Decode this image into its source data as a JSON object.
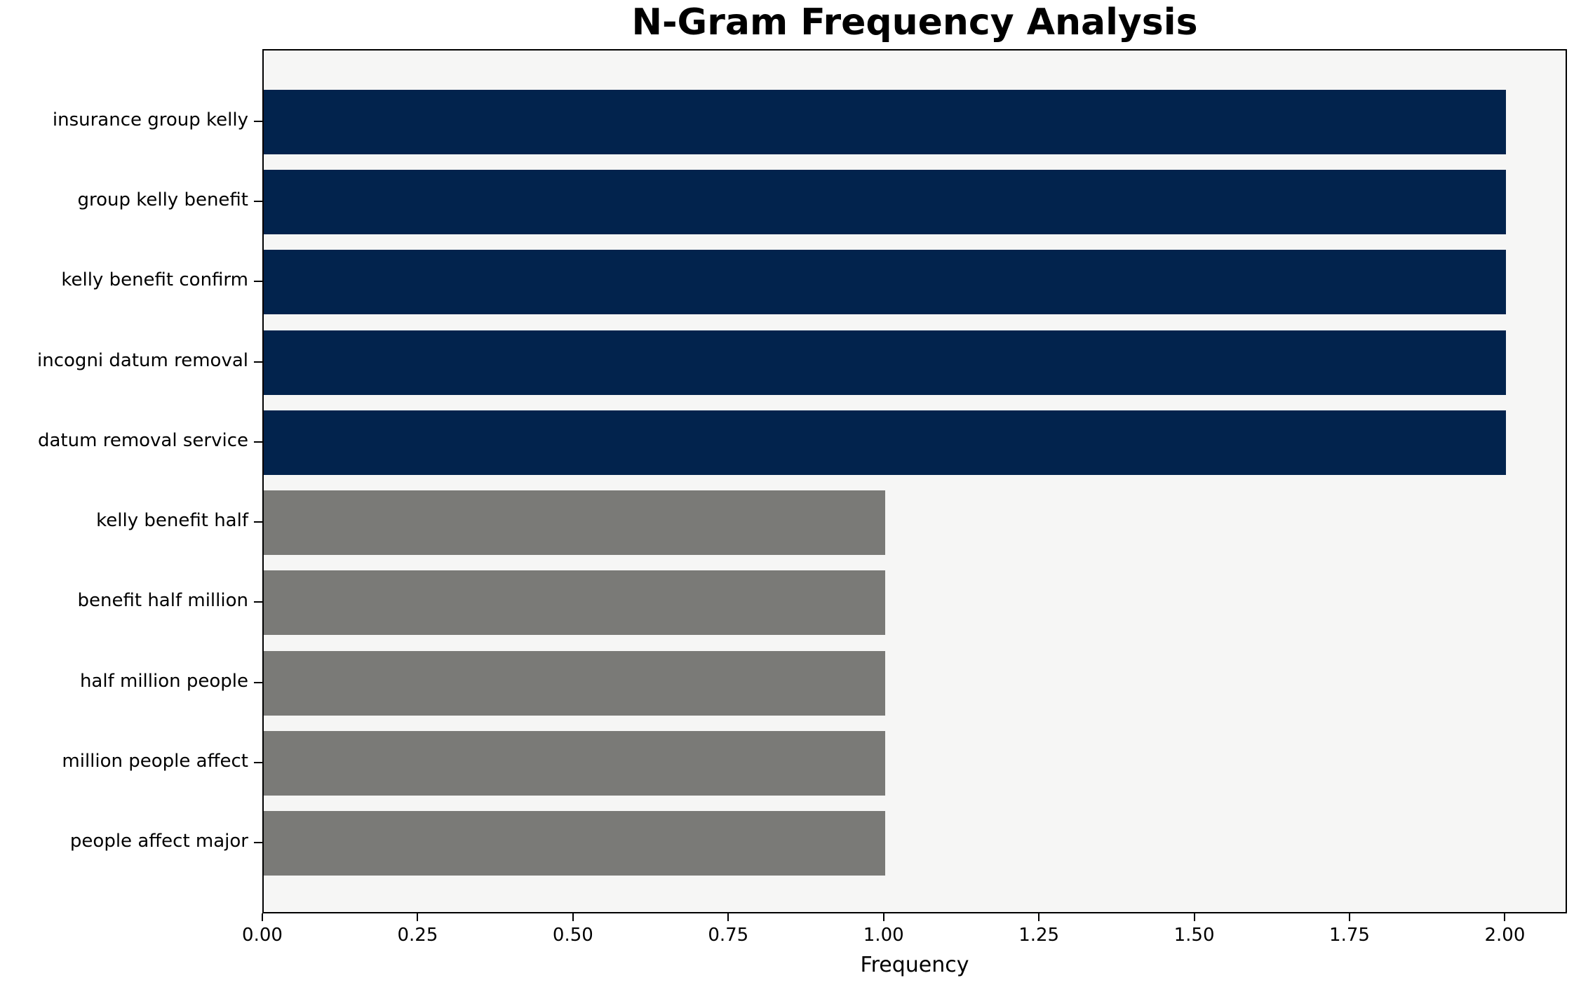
{
  "chart_data": {
    "type": "bar",
    "orientation": "horizontal",
    "title": "N-Gram Frequency Analysis",
    "xlabel": "Frequency",
    "ylabel": "",
    "categories": [
      "insurance group kelly",
      "group kelly benefit",
      "kelly benefit confirm",
      "incogni datum removal",
      "datum removal service",
      "kelly benefit half",
      "benefit half million",
      "half million people",
      "million people affect",
      "people affect major"
    ],
    "values": [
      2,
      2,
      2,
      2,
      2,
      1,
      1,
      1,
      1,
      1
    ],
    "bar_colors": [
      "#02234d",
      "#02234d",
      "#02234d",
      "#02234d",
      "#02234d",
      "#7a7a77",
      "#7a7a77",
      "#7a7a77",
      "#7a7a77",
      "#7a7a77"
    ],
    "xlim": [
      0,
      2.1
    ],
    "xticks": [
      {
        "value": 0.0,
        "label": "0.00"
      },
      {
        "value": 0.25,
        "label": "0.25"
      },
      {
        "value": 0.5,
        "label": "0.50"
      },
      {
        "value": 0.75,
        "label": "0.75"
      },
      {
        "value": 1.0,
        "label": "1.00"
      },
      {
        "value": 1.25,
        "label": "1.25"
      },
      {
        "value": 1.5,
        "label": "1.50"
      },
      {
        "value": 1.75,
        "label": "1.75"
      },
      {
        "value": 2.0,
        "label": "2.00"
      }
    ],
    "grid": false,
    "legend": null,
    "colors": {
      "high_frequency_bar": "#02234d",
      "low_frequency_bar": "#7a7a77",
      "plot_background": "#f6f6f5",
      "figure_background": "#ffffff",
      "spine": "#000000",
      "text": "#000000"
    }
  }
}
